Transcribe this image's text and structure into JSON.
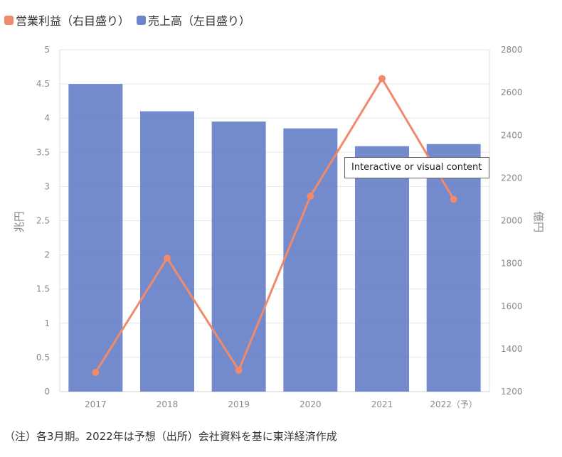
{
  "legend": {
    "profit_label": "営業利益（右目盛り）",
    "sales_label": "売上高（左目盛り）"
  },
  "colors": {
    "line": "#f08a6a",
    "bar": "#6b85c9",
    "grid": "#e6e6e6"
  },
  "note": "（注）各3月期。2022年は予想（出所）会社資料を基に東洋経済作成",
  "tooltip": "Interactive or visual content",
  "chart_data": {
    "type": "bar",
    "categories": [
      "2017",
      "2018",
      "2019",
      "2020",
      "2021",
      "2022（予）"
    ],
    "series": [
      {
        "name": "売上高（左目盛り）",
        "type": "bar",
        "axis": "left",
        "values": [
          4.5,
          4.1,
          3.95,
          3.85,
          3.59,
          3.62
        ]
      },
      {
        "name": "営業利益（右目盛り）",
        "type": "line",
        "axis": "right",
        "values": [
          1290,
          1825,
          1300,
          2115,
          2665,
          2100
        ]
      }
    ],
    "ylabel": "兆円",
    "y2label": "億円",
    "ylim": [
      0,
      5
    ],
    "y2lim": [
      1200,
      2800
    ],
    "yticks": [
      "0",
      "0.5",
      "1",
      "1.5",
      "2",
      "2.5",
      "3",
      "3.5",
      "4",
      "4.5",
      "5"
    ],
    "y2ticks": [
      "1200",
      "1400",
      "1600",
      "1800",
      "2000",
      "2200",
      "2400",
      "2600",
      "2800"
    ],
    "grid": true,
    "legend_position": "top-left"
  }
}
